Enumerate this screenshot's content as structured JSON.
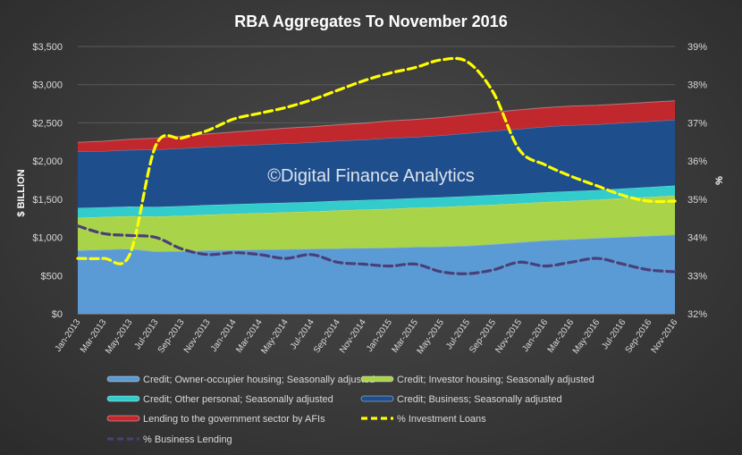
{
  "chart_data": {
    "type": "area",
    "title": "RBA Aggregates To November 2016",
    "watermark": "©Digital Finance Analytics",
    "ylabel_left": "$ BILLION",
    "ylabel_right": "%",
    "y_left": {
      "min": 0,
      "max": 3500,
      "step": 500,
      "tick_labels": [
        "$0",
        "$500",
        "$1,000",
        "$1,500",
        "$2,000",
        "$2,500",
        "$3,000",
        "$3,500"
      ]
    },
    "y_right": {
      "min": 32,
      "max": 39,
      "step": 1,
      "tick_labels": [
        "32%",
        "33%",
        "34%",
        "35%",
        "36%",
        "37%",
        "38%",
        "39%"
      ]
    },
    "x_tick_labels": [
      "Jan-2013",
      "Mar-2013",
      "May-2013",
      "Jul-2013",
      "Sep-2013",
      "Nov-2013",
      "Jan-2014",
      "Mar-2014",
      "May-2014",
      "Jul-2014",
      "Sep-2014",
      "Nov-2014",
      "Jan-2015",
      "Mar-2015",
      "May-2015",
      "Jul-2015",
      "Sep-2015",
      "Nov-2015",
      "Jan-2016",
      "Mar-2016",
      "May-2016",
      "Jul-2016",
      "Sep-2016",
      "Nov-2016"
    ],
    "stacked_series": [
      {
        "name": "Credit; Owner-occupier housing; Seasonally adjusted",
        "color": "#5b9bd5",
        "values": [
          830,
          840,
          850,
          815,
          820,
          830,
          835,
          840,
          845,
          850,
          855,
          860,
          865,
          875,
          880,
          890,
          910,
          935,
          960,
          975,
          990,
          1005,
          1020,
          1035
        ]
      },
      {
        "name": "Credit; Investor housing; Seasonally adjusted",
        "color": "#a9d44a",
        "values": [
          430,
          430,
          430,
          460,
          465,
          470,
          475,
          480,
          485,
          490,
          500,
          505,
          510,
          515,
          520,
          525,
          520,
          510,
          505,
          505,
          505,
          510,
          510,
          515
        ]
      },
      {
        "name": "Credit; Other personal; Seasonally adjusted",
        "color": "#33cccc",
        "values": [
          125,
          125,
          125,
          125,
          125,
          125,
          125,
          125,
          125,
          125,
          125,
          125,
          125,
          125,
          125,
          125,
          125,
          125,
          125,
          125,
          125,
          125,
          130,
          130
        ]
      },
      {
        "name": "Credit; Business; Seasonally adjusted",
        "color": "#1f4e8c",
        "values": [
          740,
          735,
          740,
          750,
          755,
          760,
          765,
          770,
          775,
          780,
          785,
          790,
          800,
          800,
          810,
          825,
          840,
          850,
          860,
          865,
          860,
          860,
          860,
          860
        ]
      },
      {
        "name": "Lending to the government sector by AFIs",
        "color": "#c0282d",
        "values": [
          120,
          130,
          140,
          150,
          160,
          170,
          180,
          190,
          200,
          205,
          210,
          215,
          225,
          230,
          235,
          240,
          245,
          250,
          250,
          250,
          250,
          250,
          250,
          250
        ]
      }
    ],
    "line_series": [
      {
        "name": "% Investment Loans",
        "color": "#ffff00",
        "style": "dashed",
        "axis": "right",
        "values": [
          33.45,
          33.45,
          33.55,
          36.4,
          36.6,
          36.8,
          37.1,
          37.25,
          37.4,
          37.6,
          37.85,
          38.1,
          38.3,
          38.45,
          38.65,
          38.6,
          37.8,
          36.3,
          35.9,
          35.6,
          35.35,
          35.1,
          34.95,
          34.95
        ]
      },
      {
        "name": "% Business Lending",
        "color": "#4a3f78",
        "style": "dashed",
        "axis": "right",
        "values": [
          34.3,
          34.1,
          34.05,
          34.0,
          33.7,
          33.55,
          33.6,
          33.55,
          33.45,
          33.55,
          33.35,
          33.3,
          33.25,
          33.3,
          33.1,
          33.05,
          33.15,
          33.35,
          33.25,
          33.35,
          33.45,
          33.3,
          33.15,
          33.1
        ]
      }
    ],
    "legend": {
      "placement": "bottom",
      "items": [
        "Credit; Owner-occupier housing; Seasonally adjusted",
        "Credit; Investor housing; Seasonally adjusted",
        "Credit; Other personal; Seasonally adjusted",
        "Credit; Business; Seasonally adjusted",
        "Lending to the government sector by AFIs",
        "% Investment Loans",
        "% Business Lending"
      ]
    }
  }
}
